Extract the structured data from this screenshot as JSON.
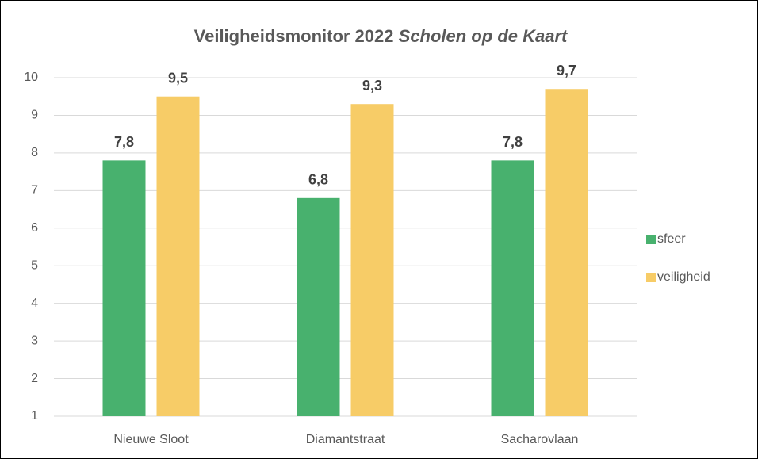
{
  "chart_data": {
    "type": "bar",
    "title": "Veiligheidsmonitor 2022",
    "title_italic": "Scholen op de Kaart",
    "categories": [
      "Nieuwe Sloot",
      "Diamantstraat",
      "Sacharovlaan"
    ],
    "series": [
      {
        "name": "sfeer",
        "color": "#48b16e",
        "values": [
          7.8,
          6.8,
          7.8
        ],
        "value_labels": [
          "7,8",
          "6,8",
          "7,8"
        ]
      },
      {
        "name": "veiligheid",
        "color": "#f7cc67",
        "values": [
          9.5,
          9.3,
          9.7
        ],
        "value_labels": [
          "9,5",
          "9,3",
          "9,7"
        ]
      }
    ],
    "ylim": [
      1,
      10
    ],
    "yticks": [
      1,
      2,
      3,
      4,
      5,
      6,
      7,
      8,
      9,
      10
    ],
    "grid": true,
    "legend": "right"
  }
}
